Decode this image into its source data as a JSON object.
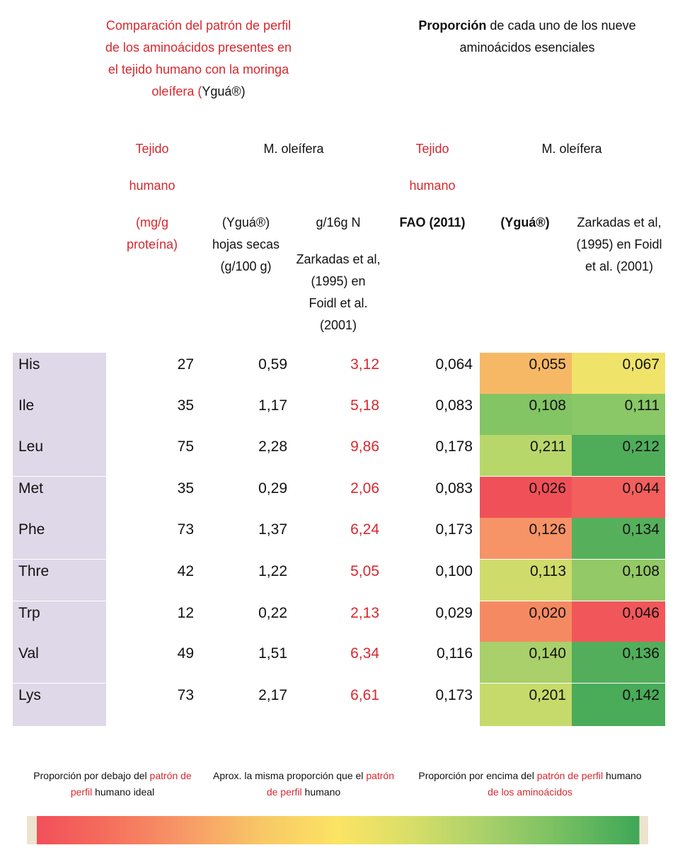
{
  "header": {
    "left_title_red": "Comparación del patrón de perfil de los aminoácidos presentes en el tejido humano con la moringa oleífera (",
    "left_title_black": "Yguá®)",
    "right_title_bold": "Proporción",
    "right_title_rest": " de cada uno de los nueve aminoácidos esenciales"
  },
  "columns": {
    "tejido_1": "Tejido",
    "humano_1": "humano",
    "unit_1": "(mg/g proteína)",
    "moringa_1": "M. oleífera",
    "hojas": "(Yguá®) hojas secas (g/100 g)",
    "zark_unit": "g/16g N",
    "zark_ref": "Zarkadas et al, (1995) en Foidl et al. (2001)",
    "tejido_2": "Tejido",
    "humano_2": "humano",
    "fao": "FAO (2011)",
    "moringa_2": "M. oleífera",
    "ygua": "(Yguá®)",
    "zark_ref_2": "Zarkadas et al, (1995) en Foidl et al. (2001)"
  },
  "rows": [
    {
      "name": "His",
      "tejido": "27",
      "hojas": "0,59",
      "zark": "3,12",
      "fao": "0,064",
      "ygua": "0,055",
      "zark2": "0,067",
      "ygua_color": "#f7b865",
      "zark2_color": "#efe36a"
    },
    {
      "name": "Ile",
      "tejido": "35",
      "hojas": "1,17",
      "zark": "5,18",
      "fao": "0,083",
      "ygua": "0,108",
      "zark2": "0,111",
      "ygua_color": "#83c464",
      "zark2_color": "#8ac766"
    },
    {
      "name": "Leu",
      "tejido": "75",
      "hojas": "2,28",
      "zark": "9,86",
      "fao": "0,178",
      "ygua": "0,211",
      "zark2": "0,212",
      "ygua_color": "#b8d76b",
      "zark2_color": "#4fad5a"
    },
    {
      "name": "Met",
      "tejido": "35",
      "hojas": "0,29",
      "zark": "2,06",
      "fao": "0,083",
      "ygua": "0,026",
      "zark2": "0,044",
      "ygua_color": "#f05158",
      "zark2_color": "#f25f5d"
    },
    {
      "name": "Phe",
      "tejido": "73",
      "hojas": "1,37",
      "zark": "6,24",
      "fao": "0,173",
      "ygua": "0,126",
      "zark2": "0,134",
      "ygua_color": "#f69367",
      "zark2_color": "#56b05b"
    },
    {
      "name": "Thre",
      "tejido": "42",
      "hojas": "1,22",
      "zark": "5,05",
      "fao": "0,100",
      "ygua": "0,113",
      "zark2": "0,108",
      "ygua_color": "#cfdc6b",
      "zark2_color": "#93c967"
    },
    {
      "name": "Trp",
      "tejido": "12",
      "hojas": "0,22",
      "zark": "2,13",
      "fao": "0,029",
      "ygua": "0,020",
      "zark2": "0,046",
      "ygua_color": "#f58a62",
      "zark2_color": "#f1575a"
    },
    {
      "name": "Val",
      "tejido": "49",
      "hojas": "1,51",
      "zark": "6,34",
      "fao": "0,116",
      "ygua": "0,140",
      "zark2": "0,136",
      "ygua_color": "#a9d06a",
      "zark2_color": "#52ae5a"
    },
    {
      "name": "Lys",
      "tejido": "73",
      "hojas": "2,17",
      "zark": "6,61",
      "fao": "0,173",
      "ygua": "0,201",
      "zark2": "0,142",
      "ygua_color": "#c6da6b",
      "zark2_color": "#4aab59"
    }
  ],
  "legend": {
    "below_a": "Proporción por debajo del ",
    "below_red": "patrón de perfil",
    "below_b": " humano ideal",
    "same_a": "Aprox. la misma proporción que el ",
    "same_red": "patrón de perfil",
    "same_b": " humano",
    "above_a": "Proporción por  encima del ",
    "above_red": "patrón de perfil",
    "above_b": " humano ",
    "above_red2": "de los aminoácidos"
  }
}
